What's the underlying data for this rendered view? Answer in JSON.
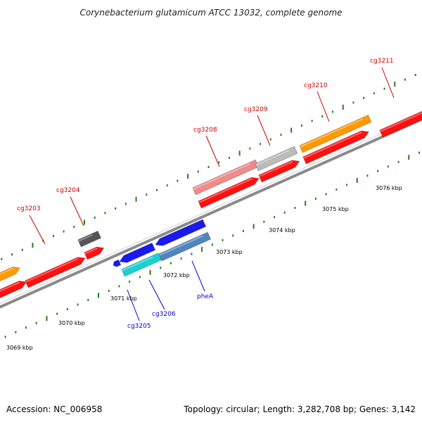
{
  "title": "Corynebacterium glutamicum ATCC 13032, complete genome",
  "footer": {
    "accession": "Accession: NC_006958",
    "topology": "Topology: circular; Length: 3,282,708 bp; Genes: 3,142"
  },
  "colors": {
    "backbone": "#8a8a8a",
    "tick": "#2a7a1a",
    "label_top": "#cc0000",
    "label_bottom": "#0000cc",
    "red": "#ff1010",
    "orange": "#ff9900",
    "grey": "#bbbbbb",
    "pink": "#f08a8a",
    "dark_grey": "#555555",
    "blue": "#1a1aee",
    "steel_blue": "#4f86c0",
    "cyan": "#1ad0d0"
  },
  "kbp_labels": [
    "3069 kbp",
    "3070 kbp",
    "3071 kbp",
    "3072 kbp",
    "3073 kbp",
    "3074 kbp",
    "3075 kbp",
    "3076 kbp"
  ],
  "gene_labels_top": [
    "cg3203",
    "cg3204",
    "cg3208",
    "cg3209",
    "cg3210",
    "cg3211"
  ],
  "gene_labels_bottom": [
    "cg3205",
    "cg3206",
    "pheA"
  ]
}
